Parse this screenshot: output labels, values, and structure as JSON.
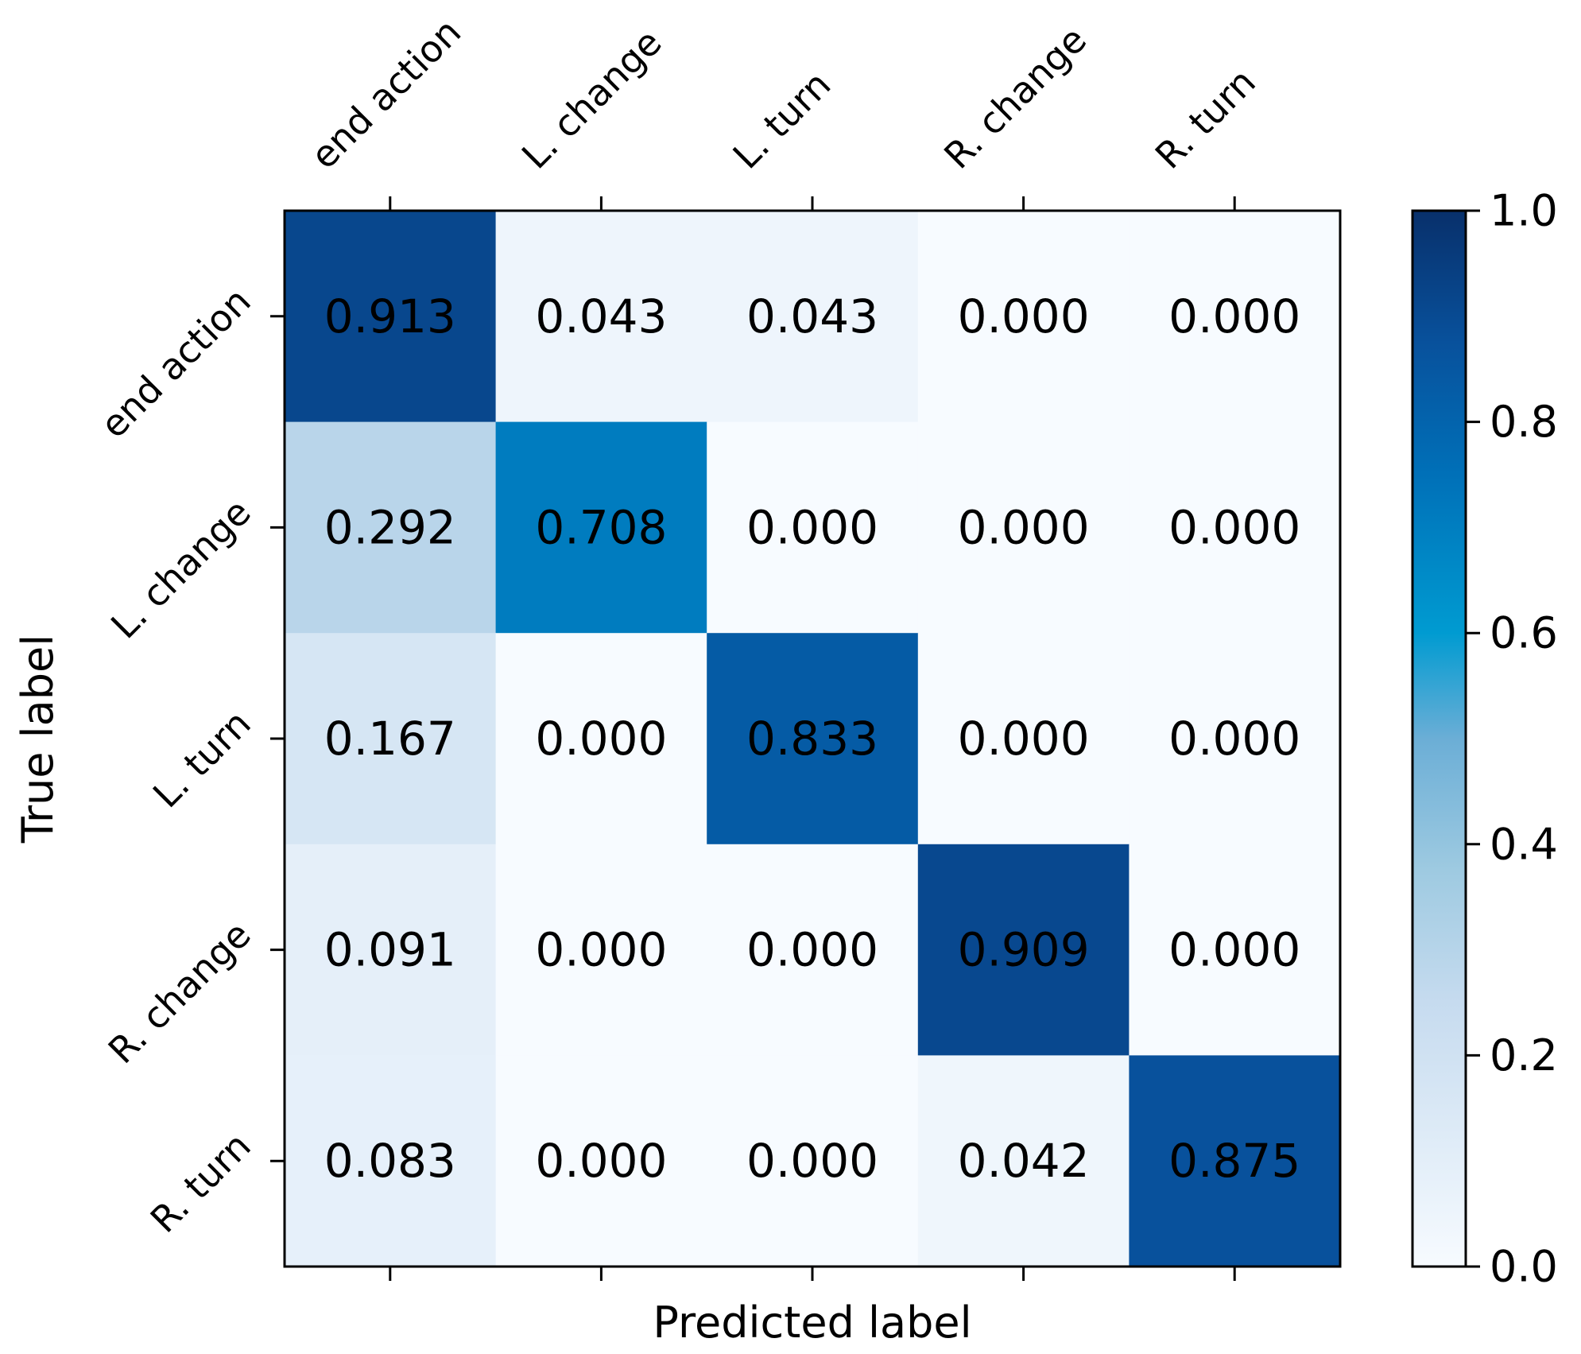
{
  "chart_data": {
    "type": "heatmap",
    "title": "",
    "xlabel": "Predicted label",
    "ylabel": "True label",
    "x_categories": [
      "end action",
      "L. change",
      "L. turn",
      "R. change",
      "R. turn"
    ],
    "y_categories": [
      "end action",
      "L. change",
      "L. turn",
      "R. change",
      "R. turn"
    ],
    "values": [
      [
        0.913,
        0.043,
        0.043,
        0.0,
        0.0
      ],
      [
        0.292,
        0.708,
        0.0,
        0.0,
        0.0
      ],
      [
        0.167,
        0.0,
        0.833,
        0.0,
        0.0
      ],
      [
        0.091,
        0.0,
        0.0,
        0.909,
        0.0
      ],
      [
        0.083,
        0.0,
        0.0,
        0.042,
        0.875
      ]
    ],
    "cell_labels": [
      [
        "0.913",
        "0.043",
        "0.043",
        "0.000",
        "0.000"
      ],
      [
        "0.292",
        "0.708",
        "0.000",
        "0.000",
        "0.000"
      ],
      [
        "0.167",
        "0.000",
        "0.833",
        "0.000",
        "0.000"
      ],
      [
        "0.091",
        "0.000",
        "0.000",
        "0.909",
        "0.000"
      ],
      [
        "0.083",
        "0.000",
        "0.000",
        "0.042",
        "0.875"
      ]
    ],
    "colorbar": {
      "range": [
        0.0,
        1.0
      ],
      "ticks": [
        "0.0",
        "0.2",
        "0.4",
        "0.6",
        "0.8",
        "1.0"
      ],
      "colormap": "Blues"
    }
  }
}
